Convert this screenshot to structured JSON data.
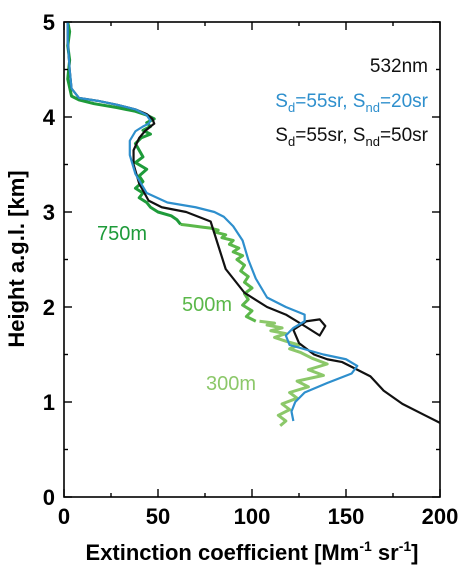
{
  "chart_data": {
    "type": "line",
    "xlabel": "Extinction coefficient [Mm",
    "xlabel_sup1": "-1",
    "xlabel_mid": " sr",
    "xlabel_sup2": "-1",
    "xlabel_end": "]",
    "ylabel": "Height a.g.l. [km]",
    "xlim": [
      0,
      200
    ],
    "ylim": [
      0,
      5
    ],
    "xticks": [
      "0",
      "50",
      "100",
      "150",
      "200"
    ],
    "yticks": [
      "0",
      "1",
      "2",
      "3",
      "4",
      "5"
    ],
    "grid": false,
    "annotations": {
      "wavelength": "532nm",
      "blue": {
        "s1": "S",
        "sub1": "d",
        "mid": "=55sr, S",
        "sub2": "nd",
        "end": "=20sr"
      },
      "black": {
        "s1": "S",
        "sub1": "d",
        "mid": "=55sr, S",
        "sub2": "nd",
        "end": "=50sr"
      }
    },
    "zone_labels": [
      {
        "text": "750m",
        "color": "#1e9b3a"
      },
      {
        "text": "500m",
        "color": "#5bb84a"
      },
      {
        "text": "300m",
        "color": "#8cc86a"
      }
    ],
    "colors": {
      "black": "#111111",
      "blue": "#2e8fcd",
      "green_dark": "#1e9b3a",
      "green_mid": "#5bb84a",
      "green_light": "#8cc86a"
    },
    "series": [
      {
        "color": "black",
        "x": [
          200,
          192,
          180,
          170,
          163,
          155,
          148,
          140,
          133,
          125,
          122,
          129,
          136,
          139,
          136,
          128,
          118,
          108,
          96,
          86,
          82,
          78,
          65,
          52,
          45,
          40,
          37,
          37,
          40,
          43,
          46,
          48,
          47,
          44,
          38,
          28,
          18,
          8,
          4,
          3,
          2,
          2
        ],
        "y": [
          0.78,
          0.86,
          0.98,
          1.12,
          1.27,
          1.35,
          1.42,
          1.45,
          1.5,
          1.62,
          1.76,
          1.85,
          1.87,
          1.8,
          1.7,
          1.8,
          1.92,
          2.0,
          2.15,
          2.4,
          2.65,
          2.9,
          3.0,
          3.05,
          3.12,
          3.3,
          3.5,
          3.65,
          3.78,
          3.85,
          3.9,
          3.93,
          3.98,
          4.03,
          4.08,
          4.13,
          4.17,
          4.2,
          4.3,
          4.5,
          4.8,
          5.0
        ]
      },
      {
        "color": "blue",
        "x": [
          122,
          121,
          123,
          128,
          140,
          153,
          156,
          150,
          138,
          120,
          118,
          122,
          128,
          128,
          118,
          108,
          102,
          98,
          95,
          90,
          85,
          80,
          70,
          55,
          44,
          38,
          35,
          35,
          38,
          42,
          45,
          46,
          44,
          38,
          28,
          18,
          8,
          4,
          3,
          2,
          2
        ],
        "y": [
          0.8,
          0.9,
          1.0,
          1.1,
          1.2,
          1.3,
          1.38,
          1.45,
          1.5,
          1.6,
          1.7,
          1.78,
          1.85,
          1.92,
          2.0,
          2.1,
          2.3,
          2.5,
          2.7,
          2.85,
          2.95,
          3.0,
          3.05,
          3.1,
          3.2,
          3.4,
          3.6,
          3.75,
          3.85,
          3.9,
          3.93,
          3.96,
          4.02,
          4.08,
          4.13,
          4.17,
          4.2,
          4.3,
          4.5,
          4.8,
          5.0
        ]
      },
      {
        "color": "green_dark",
        "x": [
          62,
          60,
          57,
          50,
          46,
          44,
          40,
          42,
          38,
          42,
          40,
          44,
          38,
          42,
          40,
          38,
          41,
          46,
          42,
          46,
          44,
          48,
          44,
          38,
          28,
          16,
          8,
          4,
          2,
          3,
          2,
          3,
          2
        ],
        "y": [
          2.87,
          2.92,
          2.96,
          3.0,
          3.05,
          3.1,
          3.15,
          3.2,
          3.25,
          3.32,
          3.38,
          3.45,
          3.52,
          3.58,
          3.65,
          3.72,
          3.78,
          3.82,
          3.86,
          3.9,
          3.94,
          3.98,
          4.02,
          4.06,
          4.1,
          4.14,
          4.18,
          4.22,
          4.4,
          4.6,
          4.75,
          4.9,
          5.0
        ]
      },
      {
        "color": "green_mid",
        "x": [
          102,
          97,
          100,
          95,
          98,
          96,
          100,
          96,
          98,
          94,
          96,
          92,
          95,
          90,
          93,
          88,
          90,
          84,
          86,
          80,
          82,
          78,
          74,
          70,
          66,
          62
        ],
        "y": [
          1.85,
          1.9,
          1.96,
          2.02,
          2.08,
          2.14,
          2.2,
          2.26,
          2.32,
          2.38,
          2.44,
          2.5,
          2.54,
          2.58,
          2.62,
          2.66,
          2.7,
          2.73,
          2.76,
          2.79,
          2.81,
          2.83,
          2.84,
          2.85,
          2.86,
          2.87
        ]
      },
      {
        "color": "green_light",
        "x": [
          115,
          118,
          114,
          120,
          116,
          124,
          120,
          130,
          124,
          138,
          130,
          140,
          132,
          126,
          120,
          125,
          118,
          112,
          118,
          110,
          116,
          108,
          112,
          104
        ],
        "y": [
          0.75,
          0.8,
          0.86,
          0.92,
          0.98,
          1.04,
          1.1,
          1.16,
          1.22,
          1.28,
          1.34,
          1.4,
          1.46,
          1.52,
          1.56,
          1.6,
          1.64,
          1.68,
          1.72,
          1.75,
          1.78,
          1.81,
          1.83,
          1.85
        ]
      }
    ]
  }
}
